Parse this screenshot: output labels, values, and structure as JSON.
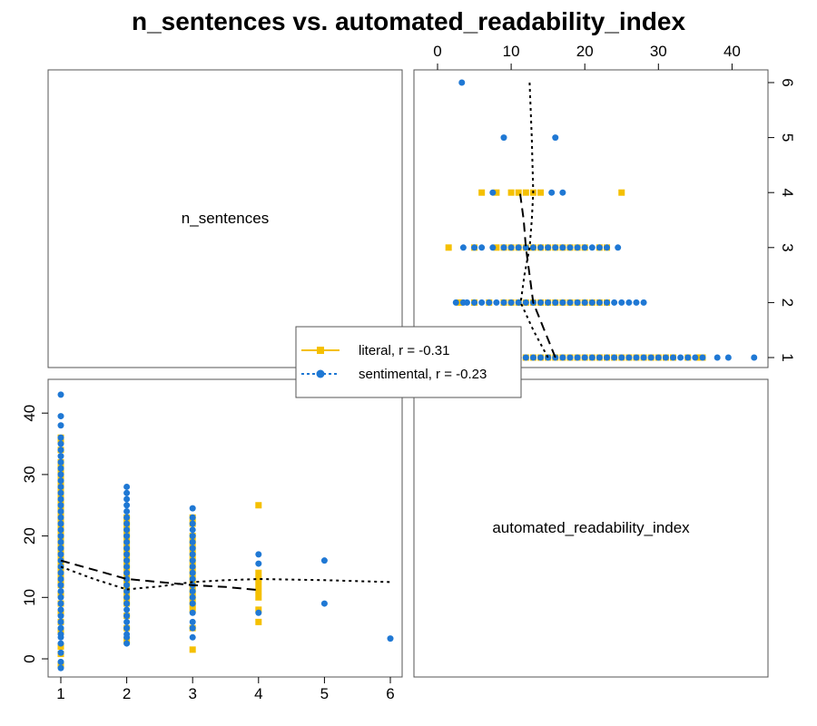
{
  "chart_data": {
    "type": "scatter",
    "title": "n_sentences vs. automated_readability_index",
    "variables": [
      "n_sentences",
      "automated_readability_index"
    ],
    "n_sentences_ticks": [
      "1",
      "2",
      "3",
      "4",
      "5",
      "6"
    ],
    "ari_ticks": [
      "0",
      "10",
      "20",
      "30",
      "40"
    ],
    "n_sentences_range": [
      0.95,
      6.05
    ],
    "ari_range": [
      -2,
      44
    ],
    "colors": {
      "literal": "#f5c000",
      "sentimental": "#1f78d4",
      "smooth": "#000000"
    },
    "legend": {
      "position": "center",
      "entries": [
        {
          "label": "literal, r = -0.31",
          "marker": "square",
          "line": "dashed"
        },
        {
          "label": "sentimental, r = -0.23",
          "marker": "circle",
          "line": "dotted"
        }
      ]
    },
    "series": [
      {
        "group": "literal",
        "points": [
          [
            1,
            -1
          ],
          [
            1,
            0.8
          ],
          [
            1,
            2
          ],
          [
            1,
            4.5
          ],
          [
            1,
            6
          ],
          [
            1,
            7.5
          ],
          [
            1,
            9
          ],
          [
            1,
            10.5
          ],
          [
            1,
            12
          ],
          [
            1,
            13
          ],
          [
            1,
            14
          ],
          [
            1,
            15
          ],
          [
            1,
            16
          ],
          [
            1,
            17
          ],
          [
            1,
            18
          ],
          [
            1,
            19
          ],
          [
            1,
            20
          ],
          [
            1,
            21
          ],
          [
            1,
            22
          ],
          [
            1,
            23
          ],
          [
            1,
            24
          ],
          [
            1,
            25
          ],
          [
            1,
            26
          ],
          [
            1,
            27
          ],
          [
            1,
            28
          ],
          [
            1,
            29
          ],
          [
            1,
            30
          ],
          [
            1,
            31
          ],
          [
            1,
            32
          ],
          [
            1,
            34
          ],
          [
            1,
            35.5
          ],
          [
            1,
            36
          ],
          [
            2,
            3
          ],
          [
            2,
            5
          ],
          [
            2,
            7
          ],
          [
            2,
            9
          ],
          [
            2,
            10
          ],
          [
            2,
            11
          ],
          [
            2,
            12
          ],
          [
            2,
            13
          ],
          [
            2,
            14
          ],
          [
            2,
            15
          ],
          [
            2,
            16
          ],
          [
            2,
            17
          ],
          [
            2,
            18
          ],
          [
            2,
            19
          ],
          [
            2,
            20
          ],
          [
            2,
            21
          ],
          [
            2,
            22
          ],
          [
            2,
            23
          ],
          [
            3,
            1.5
          ],
          [
            3,
            5
          ],
          [
            3,
            8
          ],
          [
            3,
            9
          ],
          [
            3,
            10
          ],
          [
            3,
            11
          ],
          [
            3,
            12
          ],
          [
            3,
            13
          ],
          [
            3,
            14
          ],
          [
            3,
            15
          ],
          [
            3,
            16
          ],
          [
            3,
            17
          ],
          [
            3,
            18
          ],
          [
            3,
            19
          ],
          [
            3,
            20
          ],
          [
            3,
            22
          ],
          [
            3,
            23
          ],
          [
            4,
            6
          ],
          [
            4,
            8
          ],
          [
            4,
            10
          ],
          [
            4,
            11
          ],
          [
            4,
            12
          ],
          [
            4,
            13
          ],
          [
            4,
            14
          ],
          [
            4,
            25
          ]
        ]
      },
      {
        "group": "sentimental",
        "points": [
          [
            1,
            -1.5
          ],
          [
            1,
            -0.5
          ],
          [
            1,
            1
          ],
          [
            1,
            2.5
          ],
          [
            1,
            3.5
          ],
          [
            1,
            4
          ],
          [
            1,
            5
          ],
          [
            1,
            6
          ],
          [
            1,
            7
          ],
          [
            1,
            8
          ],
          [
            1,
            9
          ],
          [
            1,
            10
          ],
          [
            1,
            11
          ],
          [
            1,
            12
          ],
          [
            1,
            13
          ],
          [
            1,
            14
          ],
          [
            1,
            15
          ],
          [
            1,
            16
          ],
          [
            1,
            17
          ],
          [
            1,
            18
          ],
          [
            1,
            19
          ],
          [
            1,
            20
          ],
          [
            1,
            21
          ],
          [
            1,
            22
          ],
          [
            1,
            23
          ],
          [
            1,
            24
          ],
          [
            1,
            25
          ],
          [
            1,
            26
          ],
          [
            1,
            27
          ],
          [
            1,
            28
          ],
          [
            1,
            29
          ],
          [
            1,
            30
          ],
          [
            1,
            31
          ],
          [
            1,
            32
          ],
          [
            1,
            33
          ],
          [
            1,
            34
          ],
          [
            1,
            35
          ],
          [
            1,
            36
          ],
          [
            1,
            38
          ],
          [
            1,
            39.5
          ],
          [
            1,
            43
          ],
          [
            2,
            2.5
          ],
          [
            2,
            3.5
          ],
          [
            2,
            4
          ],
          [
            2,
            5
          ],
          [
            2,
            6
          ],
          [
            2,
            7
          ],
          [
            2,
            8
          ],
          [
            2,
            9
          ],
          [
            2,
            10
          ],
          [
            2,
            11
          ],
          [
            2,
            12
          ],
          [
            2,
            13
          ],
          [
            2,
            14
          ],
          [
            2,
            15
          ],
          [
            2,
            16
          ],
          [
            2,
            17
          ],
          [
            2,
            18
          ],
          [
            2,
            19
          ],
          [
            2,
            20
          ],
          [
            2,
            21
          ],
          [
            2,
            22
          ],
          [
            2,
            23
          ],
          [
            2,
            24
          ],
          [
            2,
            25
          ],
          [
            2,
            26
          ],
          [
            2,
            27
          ],
          [
            2,
            28
          ],
          [
            3,
            3.5
          ],
          [
            3,
            5
          ],
          [
            3,
            6
          ],
          [
            3,
            7.5
          ],
          [
            3,
            9
          ],
          [
            3,
            10
          ],
          [
            3,
            11
          ],
          [
            3,
            12
          ],
          [
            3,
            13
          ],
          [
            3,
            14
          ],
          [
            3,
            15
          ],
          [
            3,
            16
          ],
          [
            3,
            17
          ],
          [
            3,
            18
          ],
          [
            3,
            19
          ],
          [
            3,
            20
          ],
          [
            3,
            21
          ],
          [
            3,
            22
          ],
          [
            3,
            23
          ],
          [
            3,
            24.5
          ],
          [
            4,
            7.5
          ],
          [
            4,
            15.5
          ],
          [
            4,
            17
          ],
          [
            5,
            9
          ],
          [
            5,
            16
          ],
          [
            6,
            3.3
          ]
        ]
      }
    ],
    "smooth_lines": [
      {
        "group": "literal",
        "style": "dashed",
        "points": [
          [
            1,
            16
          ],
          [
            1.5,
            14.5
          ],
          [
            2,
            13
          ],
          [
            2.5,
            12.5
          ],
          [
            3,
            12
          ],
          [
            3.5,
            11.7
          ],
          [
            4,
            11.2
          ]
        ]
      },
      {
        "group": "sentimental",
        "style": "dotted",
        "points": [
          [
            1,
            15
          ],
          [
            1.5,
            13
          ],
          [
            2,
            11.3
          ],
          [
            2.5,
            11.8
          ],
          [
            3,
            12.5
          ],
          [
            3.5,
            12.8
          ],
          [
            4,
            13
          ],
          [
            5,
            12.8
          ],
          [
            6,
            12.5
          ]
        ]
      }
    ]
  }
}
